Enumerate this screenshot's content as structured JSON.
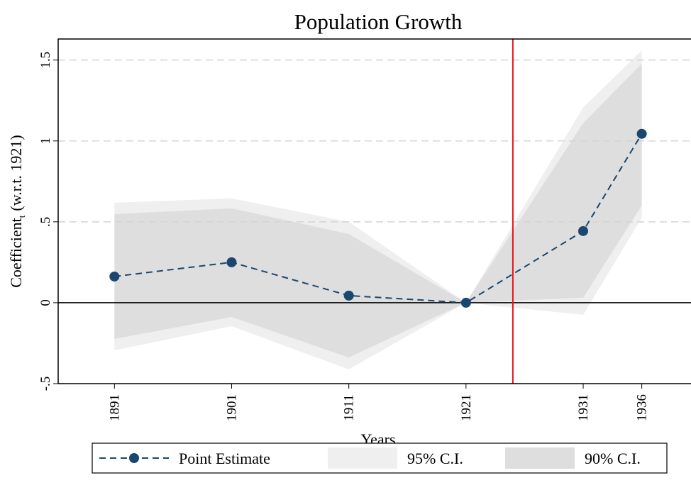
{
  "chart_data": {
    "type": "line",
    "title": "Population Growth",
    "xlabel": "Years",
    "ylabel": "Coefficient",
    "ylabel_subscript": "t",
    "ylabel_suffix": "(w.r.t. 1921)",
    "x": [
      1891,
      1901,
      1911,
      1921,
      1931,
      1936
    ],
    "xlim": [
      1886.2,
      1940.2
    ],
    "xticks": [
      1891,
      1901,
      1911,
      1921,
      1931,
      1936
    ],
    "ylim": [
      -0.5,
      1.63
    ],
    "yticks": [
      {
        "value": -0.5,
        "label": "-.5"
      },
      0,
      {
        "value": 0.5,
        "label": ".5"
      },
      1,
      1.5
    ],
    "grid": true,
    "legend": "bottom",
    "vline": {
      "x": 1925,
      "color": "#e8141b"
    },
    "series": [
      {
        "name": "Point Estimate",
        "color": "#1a476f",
        "values": [
          0.162,
          0.25,
          0.044,
          0,
          0.443,
          1.044
        ]
      },
      {
        "name": "95% C.I.",
        "color": "#efefef",
        "lower": [
          -0.294,
          -0.145,
          -0.412,
          0,
          -0.075,
          0.526
        ],
        "upper": [
          0.618,
          0.645,
          0.5,
          0,
          1.206,
          1.56
        ]
      },
      {
        "name": "90% C.I.",
        "color": "#dedede",
        "lower": [
          -0.224,
          -0.088,
          -0.338,
          0,
          0.031,
          0.601
        ],
        "upper": [
          0.548,
          0.583,
          0.425,
          0,
          1.11,
          1.478
        ]
      }
    ]
  }
}
